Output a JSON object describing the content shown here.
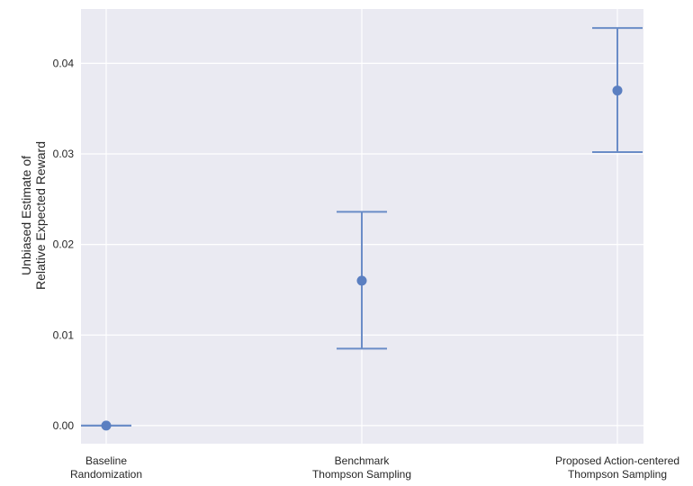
{
  "chart_data": {
    "type": "scatter",
    "title": "",
    "xlabel": "",
    "ylabel": "Unbiased Estimate of\nRelative Expected Reward",
    "ylim": [
      -0.002,
      0.046
    ],
    "yticks": [
      "0.00",
      "0.01",
      "0.02",
      "0.03",
      "0.04"
    ],
    "grid": true,
    "legend": "none",
    "categories": [
      "Baseline\nRandomization",
      "Benchmark\nThompson Sampling",
      "Proposed Action-centered\nThompson Sampling"
    ],
    "series": [
      {
        "values": [
          0.0,
          0.016,
          0.037
        ],
        "error_low": [
          0.0,
          0.0085,
          0.0302
        ],
        "error_high": [
          0.0,
          0.0236,
          0.0439
        ]
      }
    ],
    "colors": {
      "background": "#eaeaf2",
      "grid": "#ffffff",
      "marker": "#5b7fc1",
      "errorbar": "#6a8cc7"
    }
  }
}
